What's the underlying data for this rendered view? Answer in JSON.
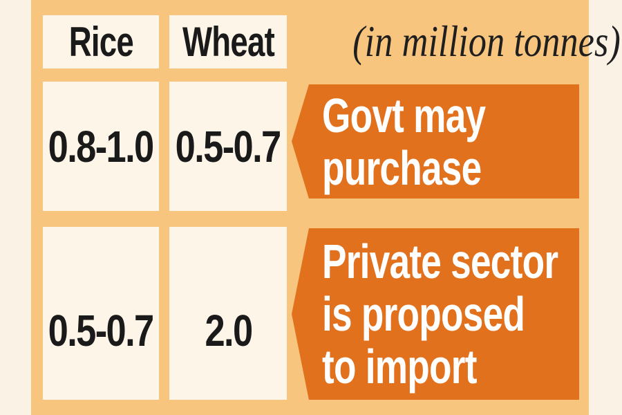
{
  "unit_label": "(in million tonnes)",
  "columns": {
    "rice": "Rice",
    "wheat": "Wheat"
  },
  "rows": {
    "govt": {
      "rice": "0.8-1.0",
      "wheat": "0.5-0.7",
      "label": "Govt may purchase",
      "lines": [
        "Govt may",
        "purchase"
      ]
    },
    "private": {
      "rice": "0.5-0.7",
      "wheat": "2.0",
      "label": "Private sector is proposed to import",
      "lines": [
        "Private sector",
        "is proposed",
        "to import"
      ]
    }
  },
  "colors": {
    "page_background": "#fbf2e6",
    "panel_background": "#f8c57e",
    "cell_background": "#fdf5e8",
    "banner_background": "#e2711d",
    "text_dark": "#1a1a1a",
    "banner_text": "#ffffff"
  },
  "chart_data": {
    "type": "table",
    "title": "(in million tonnes)",
    "columns": [
      "Rice",
      "Wheat"
    ],
    "rows": [
      {
        "label": "Govt may purchase",
        "Rice": "0.8-1.0",
        "Wheat": "0.5-0.7"
      },
      {
        "label": "Private sector is proposed to import",
        "Rice": "0.5-0.7",
        "Wheat": "2.0"
      }
    ]
  }
}
